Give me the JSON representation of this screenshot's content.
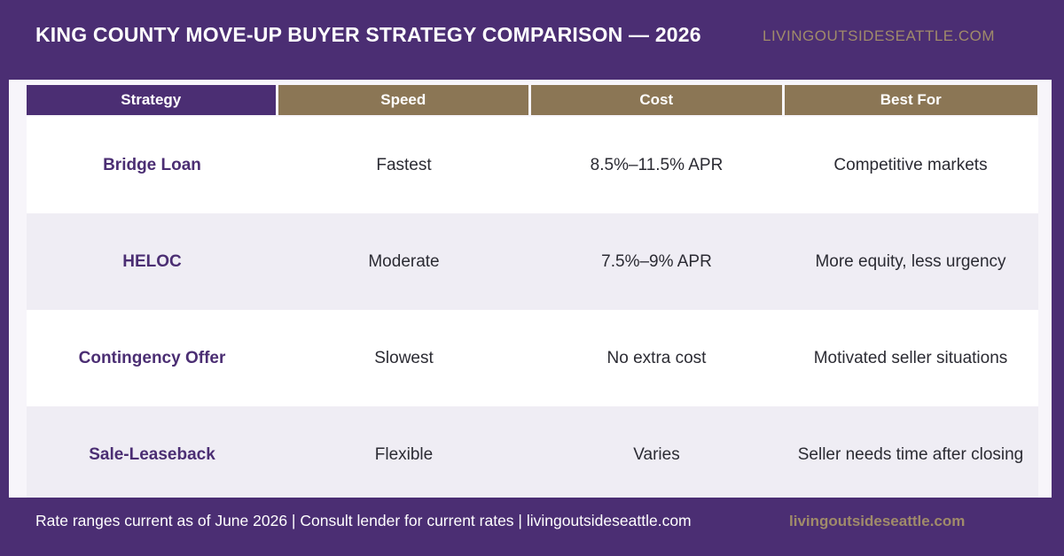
{
  "header": {
    "title": "KING COUNTY MOVE-UP BUYER STRATEGY COMPARISON — 2026",
    "site": "LIVINGOUTSIDESEATTLE.COM"
  },
  "table": {
    "columns": [
      "Strategy",
      "Speed",
      "Cost",
      "Best For"
    ],
    "rows": [
      {
        "strategy": "Bridge Loan",
        "speed": "Fastest",
        "cost": "8.5%–11.5% APR",
        "best_for": "Competitive markets"
      },
      {
        "strategy": "HELOC",
        "speed": "Moderate",
        "cost": "7.5%–9% APR",
        "best_for": "More equity, less urgency"
      },
      {
        "strategy": "Contingency Offer",
        "speed": "Slowest",
        "cost": "No extra cost",
        "best_for": "Motivated seller situations"
      },
      {
        "strategy": "Sale-Leaseback",
        "speed": "Flexible",
        "cost": "Varies",
        "best_for": "Seller needs time after closing"
      }
    ]
  },
  "footer": {
    "note": "Rate ranges current as of June 2026 | Consult lender for current rates | livingoutsideseattle.com",
    "site": "livingoutsideseattle.com"
  },
  "colors": {
    "primary": "#4b2e73",
    "accent": "#8b7655",
    "row_alt": "#efedf4"
  }
}
